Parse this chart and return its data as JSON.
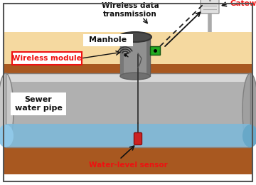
{
  "fig_width": 3.6,
  "fig_height": 2.6,
  "dpi": 100,
  "bg_color": "#FFFFFF",
  "ground_top_color": "#F5D9A0",
  "ground_bottom_color": "#A85820",
  "pipe_color_light": "#C8C8C8",
  "pipe_color_mid": "#B0B0B0",
  "pipe_color_dark": "#989898",
  "water_color": "#7EB8D8",
  "manhole_body_color": "#909090",
  "manhole_cap_color": "#4A4A4A",
  "green_module_color": "#22AA22",
  "sensor_color": "#CC2222",
  "gateway_pole_color": "#AAAAAA",
  "gateway_box_color": "#E0E0E0",
  "label_wireless_data": "Wireless data\ntransmission",
  "label_gateway": "Gateway",
  "label_manhole": "Manhole",
  "label_wireless_module": "Wireless module",
  "label_sewer_pipe": "Sewer\nwater pipe",
  "label_water_sensor": "Water-level sensor",
  "red_label_color": "#EE1111",
  "black_label_color": "#111111"
}
